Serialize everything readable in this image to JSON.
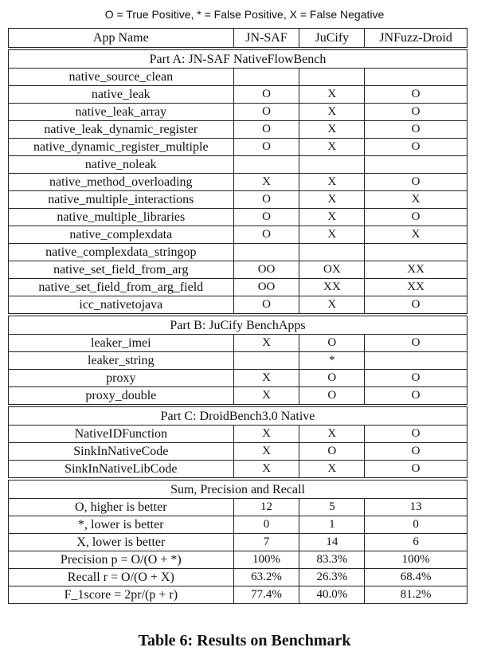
{
  "legend": "O = True Positive, * = False Positive, X = False Negative",
  "columns": [
    "App Name",
    "JN-SAF",
    "JuCify",
    "JNFuzz-Droid"
  ],
  "sections": [
    {
      "title": "Part A: JN-SAF NativeFlowBench",
      "rows": [
        [
          "native_source_clean",
          "",
          "",
          ""
        ],
        [
          "native_leak",
          "O",
          "X",
          "O"
        ],
        [
          "native_leak_array",
          "O",
          "X",
          "O"
        ],
        [
          "native_leak_dynamic_register",
          "O",
          "X",
          "O"
        ],
        [
          "native_dynamic_register_multiple",
          "O",
          "X",
          "O"
        ],
        [
          "native_noleak",
          "",
          "",
          ""
        ],
        [
          "native_method_overloading",
          "X",
          "X",
          "O"
        ],
        [
          "native_multiple_interactions",
          "O",
          "X",
          "X"
        ],
        [
          "native_multiple_libraries",
          "O",
          "X",
          "O"
        ],
        [
          "native_complexdata",
          "O",
          "X",
          "X"
        ],
        [
          "native_complexdata_stringop",
          "",
          "",
          ""
        ],
        [
          "native_set_field_from_arg",
          "OO",
          "OX",
          "XX"
        ],
        [
          "native_set_field_from_arg_field",
          "OO",
          "XX",
          "XX"
        ],
        [
          "icc_nativetojava",
          "O",
          "X",
          "O"
        ]
      ]
    },
    {
      "title": "Part B: JuCify BenchApps",
      "rows": [
        [
          "leaker_imei",
          "X",
          "O",
          "O"
        ],
        [
          "leaker_string",
          "",
          "*",
          ""
        ],
        [
          "proxy",
          "X",
          "O",
          "O"
        ],
        [
          "proxy_double",
          "X",
          "O",
          "O"
        ]
      ]
    },
    {
      "title": "Part C: DroidBench3.0 Native",
      "rows": [
        [
          "NativeIDFunction",
          "X",
          "X",
          "O"
        ],
        [
          "SinkInNativeCode",
          "X",
          "O",
          "O"
        ],
        [
          "SinkInNativeLibCode",
          "X",
          "X",
          "O"
        ]
      ]
    },
    {
      "title": "Sum, Precision and Recall",
      "rows": [
        [
          "O, higher is better",
          "12",
          "5",
          "13"
        ],
        [
          "*, lower is better",
          "0",
          "1",
          "0"
        ],
        [
          "X, lower is better",
          "7",
          "14",
          "6"
        ],
        [
          "Precision p = O/(O + *)",
          "100%",
          "83.3%",
          "100%"
        ],
        [
          "Recall r = O/(O + X)",
          "63.2%",
          "26.3%",
          "68.4%"
        ],
        [
          "F_1score = 2pr/(p + r)",
          "77.4%",
          "40.0%",
          "81.2%"
        ]
      ]
    }
  ],
  "caption": "Table 6: Results on Benchmark"
}
